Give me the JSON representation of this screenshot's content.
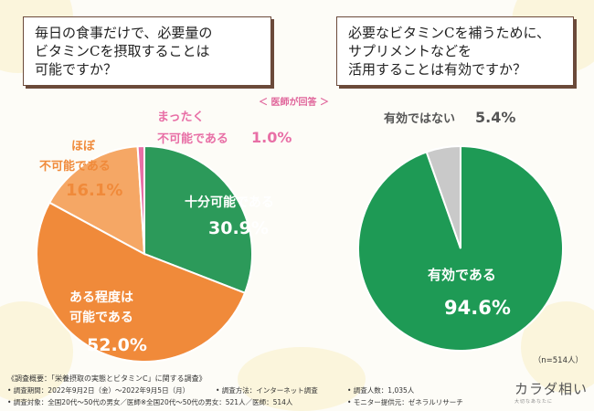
{
  "questions": {
    "left": "毎日の食事だけで、必要量の\nビタミンCを摂取することは\n可能ですか？",
    "right": "必要なビタミンCを補うために、\nサプリメントなどを\n活用することは有効ですか？"
  },
  "doctor_tag": "＜ 医師が回答 ＞",
  "n_label": "（n=514人）",
  "chart_data": [
    {
      "type": "pie",
      "style": "donut",
      "title": "毎日の食事だけで、必要量のビタミンCを摂取することは可能ですか？",
      "slices": [
        {
          "label": "十分可能である",
          "value": 30.9,
          "color": "#2c9a5a"
        },
        {
          "label": "ある程度は\n可能である",
          "value": 52.0,
          "color": "#f08a3a"
        },
        {
          "label": "ほぼ\n不可能である",
          "value": 16.1,
          "color": "#f5a765"
        },
        {
          "label": "まったく\n不可能である",
          "value": 1.0,
          "color": "#e86fa6"
        }
      ]
    },
    {
      "type": "pie",
      "title": "必要なビタミンCを補うために、サプリメントなどを活用することは有効ですか？",
      "slices": [
        {
          "label": "有効である",
          "value": 94.6,
          "color": "#1e9a55"
        },
        {
          "label": "有効ではない",
          "value": 5.4,
          "color": "#c9c9c9"
        }
      ]
    }
  ],
  "labels": {
    "l_juubun": "十分可能である",
    "l_juubun_val": "30.9%",
    "l_aru_1": "ある程度は",
    "l_aru_2": "可能である",
    "l_aru_val": "52.0%",
    "l_hobo_1": "ほぼ",
    "l_hobo_2": "不可能である",
    "l_hobo_val": "16.1%",
    "l_matta_1": "まったく",
    "l_matta_2": "不可能である",
    "l_matta_val": "1.0%",
    "r_yuukou": "有効である",
    "r_yuukou_val": "94.6%",
    "r_nai": "有効ではない",
    "r_nai_val": "5.4%"
  },
  "footer": {
    "title": "《調査概要：「栄養摂取の実態とビタミンC」に関する調査》",
    "period": "• 調査期間：2022年9月2日（金）〜2022年9月5日（月）",
    "method": "• 調査方法：インターネット調査",
    "count": "• 調査人数：1,035人",
    "target": "• 調査対象：全国20代〜50代の男女／医師※全国20代〜50代の男女：521人／医師：514人",
    "monitor": "• モニター提供元：ゼネラルリサーチ"
  },
  "logo": {
    "main": "カラダ相い",
    "sub": "大切なあなたに"
  }
}
